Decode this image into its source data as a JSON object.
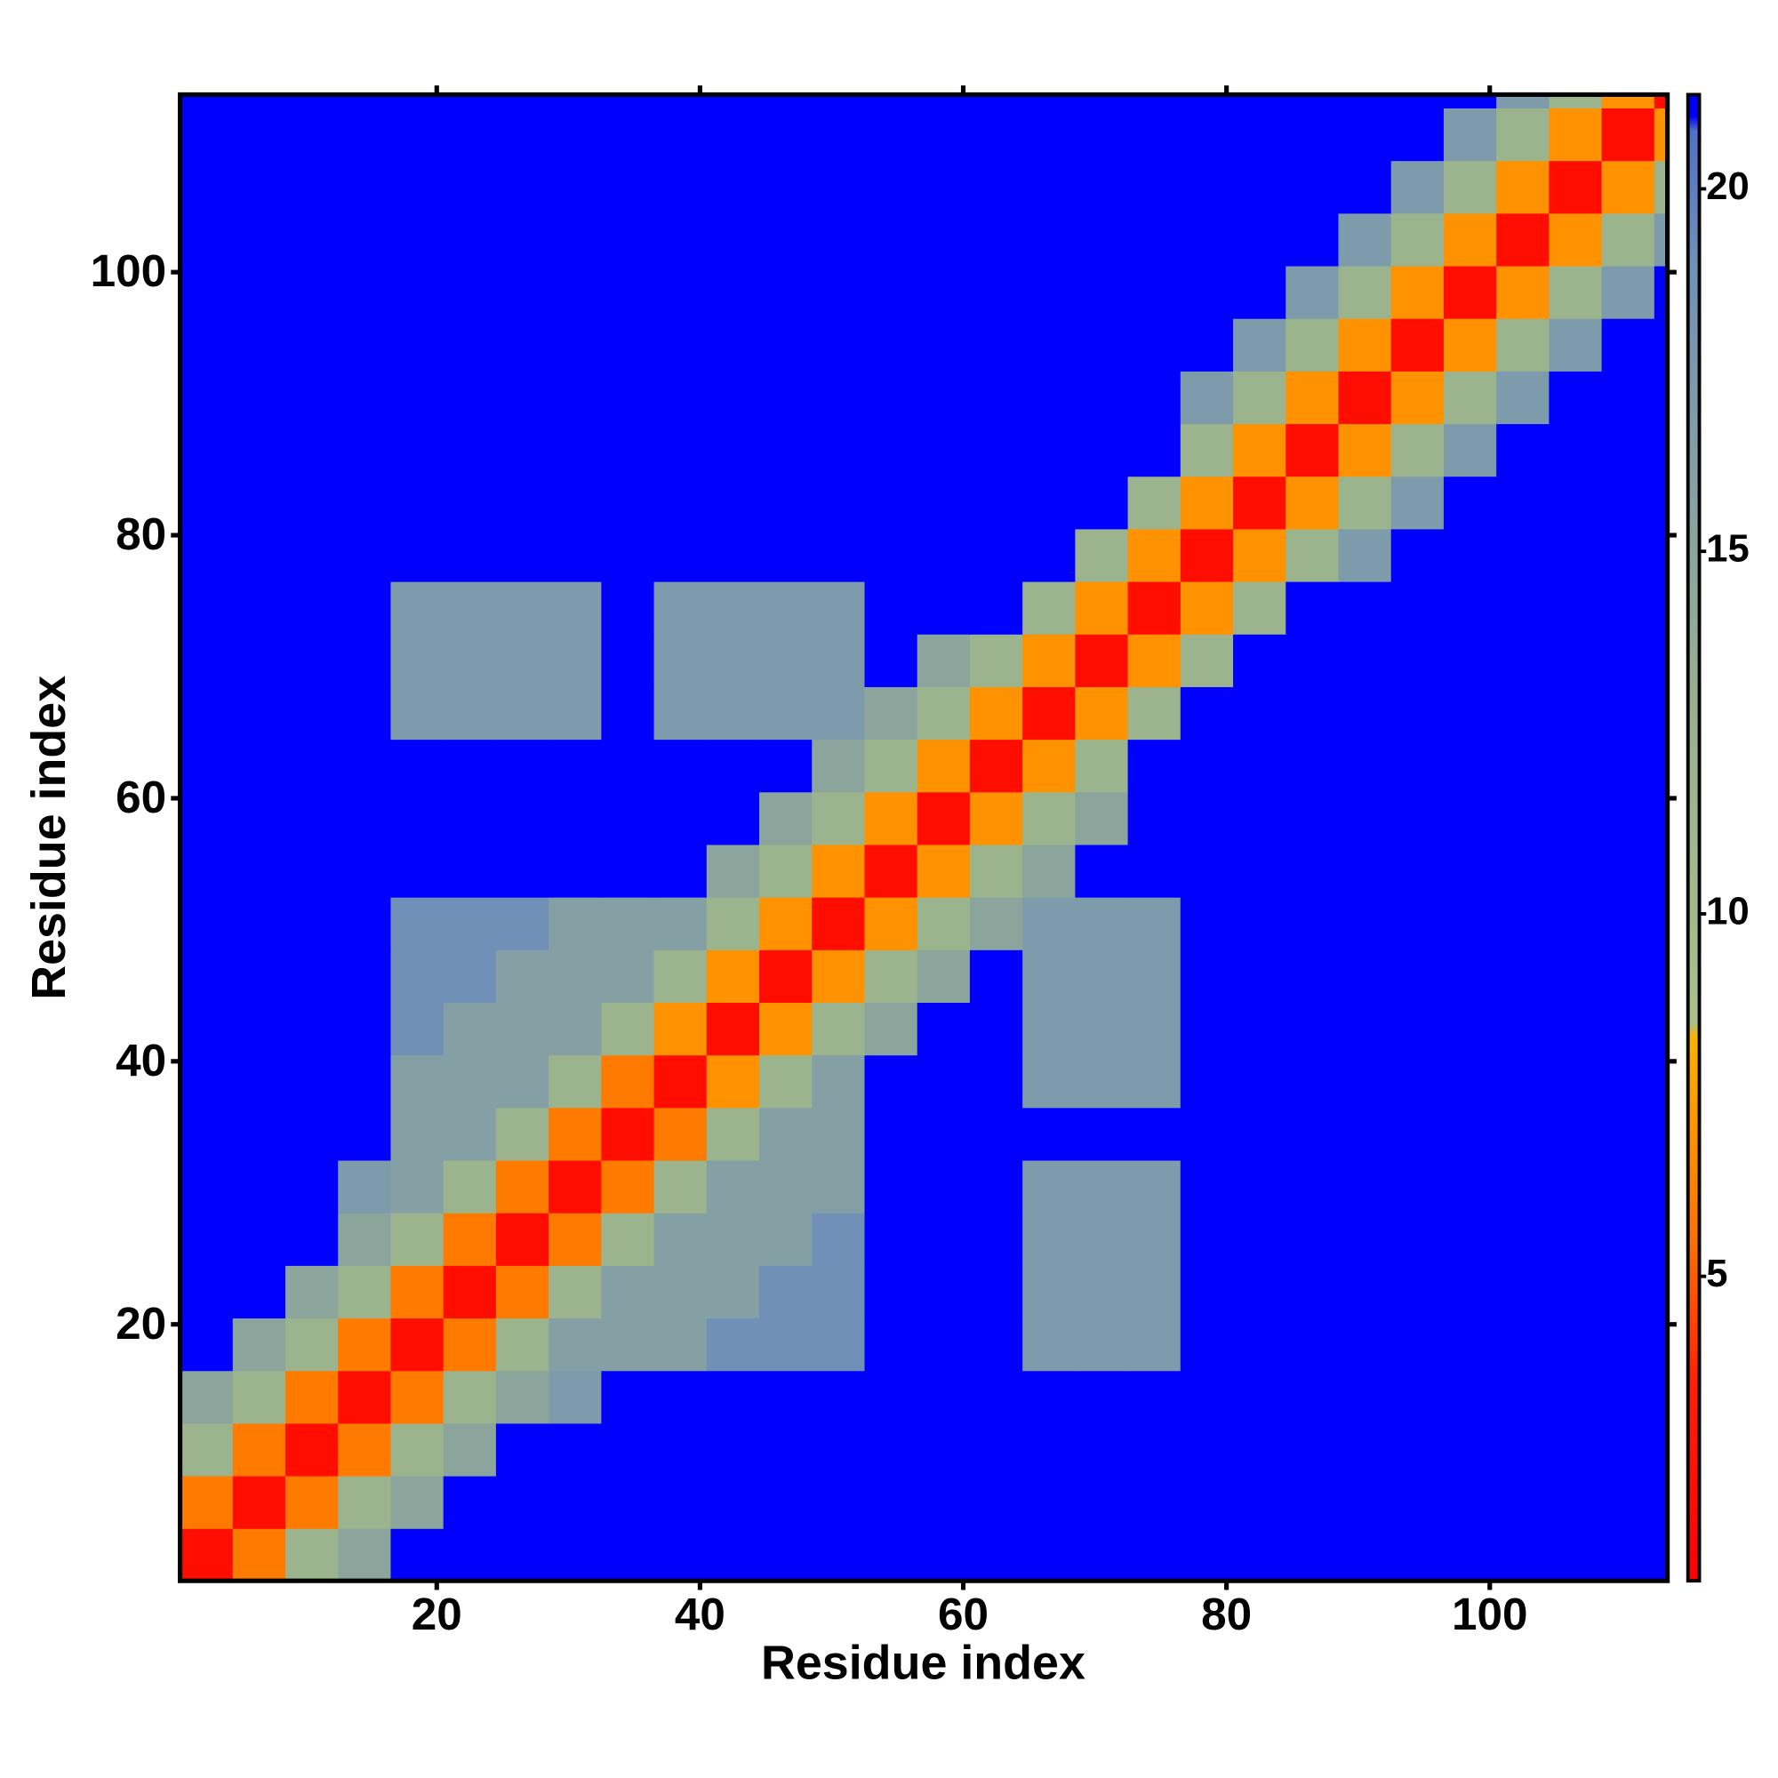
{
  "chart_data": {
    "type": "heatmap",
    "xlabel": "Residue index",
    "ylabel": "Residue index",
    "xlim": [
      0.5,
      113.5
    ],
    "ylim": [
      0.5,
      113.5
    ],
    "xticks": [
      20,
      40,
      60,
      80,
      100
    ],
    "yticks": [
      20,
      40,
      60,
      80,
      100
    ],
    "xbins": [
      0.5,
      4.5,
      8.5,
      12.5,
      16.5,
      20.5,
      24.5,
      28.5,
      32.5,
      36.5,
      40.5,
      44.5,
      48.5,
      52.5,
      56.5,
      60.5,
      64.5,
      68.5,
      72.5,
      76.5,
      80.5,
      84.5,
      88.5,
      92.5,
      96.5,
      100.5,
      104.5,
      108.5,
      112.5,
      113.5
    ],
    "ybins": [
      0.5,
      4.5,
      8.5,
      12.5,
      16.5,
      20.5,
      24.5,
      28.5,
      32.5,
      36.5,
      40.5,
      44.5,
      48.5,
      52.5,
      56.5,
      60.5,
      64.5,
      68.5,
      72.5,
      76.5,
      80.5,
      84.5,
      88.5,
      92.5,
      96.5,
      100.5,
      104.5,
      108.5,
      112.5,
      113.5
    ],
    "colorbar": {
      "lim": [
        0.8,
        21.3
      ],
      "ticks": [
        5,
        10,
        15,
        20
      ]
    },
    "colorscale": [
      [
        0.8,
        "#ff0000"
      ],
      [
        3.5,
        "#ff2000"
      ],
      [
        5.5,
        "#ff7000"
      ],
      [
        8.3,
        "#ffb000"
      ],
      [
        8.5,
        "#a8c088"
      ],
      [
        13,
        "#98b090"
      ],
      [
        19,
        "#7090b8"
      ],
      [
        20.8,
        "#5070c8"
      ],
      [
        21,
        "#0000ff"
      ],
      [
        21.3,
        "#0000ff"
      ]
    ],
    "z": [
      [
        2,
        6,
        12,
        15,
        22,
        22,
        22,
        22,
        22,
        22,
        22,
        22,
        22,
        22,
        22,
        22,
        22,
        22,
        22,
        22,
        22,
        22,
        22,
        22,
        22,
        22,
        22,
        22,
        22
      ],
      [
        6,
        2,
        6,
        12,
        15,
        22,
        22,
        22,
        22,
        22,
        22,
        22,
        22,
        22,
        22,
        22,
        22,
        22,
        22,
        22,
        22,
        22,
        22,
        22,
        22,
        22,
        22,
        22,
        22
      ],
      [
        12,
        6,
        2,
        6,
        12,
        15,
        22,
        22,
        22,
        22,
        22,
        22,
        22,
        22,
        22,
        22,
        22,
        22,
        22,
        22,
        22,
        22,
        22,
        22,
        22,
        22,
        22,
        22,
        22
      ],
      [
        15,
        12,
        6,
        2,
        6,
        12,
        15,
        17,
        22,
        22,
        22,
        22,
        22,
        22,
        22,
        22,
        22,
        22,
        22,
        22,
        22,
        22,
        22,
        22,
        22,
        22,
        22,
        22,
        22
      ],
      [
        22,
        15,
        12,
        6,
        2,
        6,
        12,
        16,
        16,
        16,
        19,
        19,
        19,
        22,
        22,
        22,
        17,
        17,
        17,
        22,
        22,
        22,
        22,
        22,
        22,
        22,
        22,
        22,
        22
      ],
      [
        22,
        22,
        15,
        12,
        6,
        2,
        6,
        12,
        16,
        16,
        16,
        19,
        19,
        22,
        22,
        22,
        17,
        17,
        17,
        22,
        22,
        22,
        22,
        22,
        22,
        22,
        22,
        22,
        22
      ],
      [
        22,
        22,
        22,
        15,
        12,
        6,
        2,
        6,
        12,
        16,
        16,
        16,
        19,
        22,
        22,
        22,
        17,
        17,
        17,
        22,
        22,
        22,
        22,
        22,
        22,
        22,
        22,
        22,
        22
      ],
      [
        22,
        22,
        22,
        17,
        16,
        12,
        6,
        2,
        6,
        12,
        16,
        16,
        16,
        22,
        22,
        22,
        17,
        17,
        17,
        22,
        22,
        22,
        22,
        22,
        22,
        22,
        22,
        22,
        22
      ],
      [
        22,
        22,
        22,
        22,
        16,
        16,
        12,
        6,
        2,
        6,
        12,
        16,
        16,
        22,
        22,
        22,
        22,
        22,
        22,
        22,
        22,
        22,
        22,
        22,
        22,
        22,
        22,
        22,
        22
      ],
      [
        22,
        22,
        22,
        22,
        16,
        16,
        16,
        12,
        6,
        2,
        7,
        12,
        16,
        22,
        22,
        22,
        17,
        17,
        17,
        22,
        22,
        22,
        22,
        22,
        22,
        22,
        22,
        22,
        22
      ],
      [
        22,
        22,
        22,
        22,
        19,
        16,
        16,
        16,
        12,
        7,
        2,
        7,
        12,
        15,
        22,
        22,
        17,
        17,
        17,
        22,
        22,
        22,
        22,
        22,
        22,
        22,
        22,
        22,
        22
      ],
      [
        22,
        22,
        22,
        22,
        19,
        19,
        16,
        16,
        16,
        12,
        7,
        2,
        7,
        12,
        15,
        22,
        17,
        17,
        17,
        22,
        22,
        22,
        22,
        22,
        22,
        22,
        22,
        22,
        22
      ],
      [
        22,
        22,
        22,
        22,
        19,
        19,
        19,
        16,
        16,
        16,
        12,
        7,
        2,
        7,
        12,
        15,
        17,
        17,
        17,
        22,
        22,
        22,
        22,
        22,
        22,
        22,
        22,
        22,
        22
      ],
      [
        22,
        22,
        22,
        22,
        22,
        22,
        22,
        22,
        22,
        22,
        15,
        12,
        7,
        2,
        7,
        12,
        15,
        22,
        22,
        22,
        22,
        22,
        22,
        22,
        22,
        22,
        22,
        22,
        22
      ],
      [
        22,
        22,
        22,
        22,
        22,
        22,
        22,
        22,
        22,
        22,
        22,
        15,
        12,
        7,
        2,
        7,
        12,
        15,
        22,
        22,
        22,
        22,
        22,
        22,
        22,
        22,
        22,
        22,
        22
      ],
      [
        22,
        22,
        22,
        22,
        22,
        22,
        22,
        22,
        22,
        22,
        22,
        22,
        15,
        12,
        7,
        2,
        7,
        12,
        22,
        22,
        22,
        22,
        22,
        22,
        22,
        22,
        22,
        22,
        22
      ],
      [
        22,
        22,
        22,
        22,
        17,
        17,
        17,
        17,
        22,
        17,
        17,
        17,
        17,
        15,
        12,
        7,
        2,
        7,
        12,
        22,
        22,
        22,
        22,
        22,
        22,
        22,
        22,
        22,
        22
      ],
      [
        22,
        22,
        22,
        22,
        17,
        17,
        17,
        17,
        22,
        17,
        17,
        17,
        17,
        22,
        15,
        12,
        7,
        2,
        7,
        12,
        22,
        22,
        22,
        22,
        22,
        22,
        22,
        22,
        22
      ],
      [
        22,
        22,
        22,
        22,
        17,
        17,
        17,
        17,
        22,
        17,
        17,
        17,
        17,
        22,
        22,
        22,
        12,
        7,
        2,
        7,
        12,
        22,
        22,
        22,
        22,
        22,
        22,
        22,
        22
      ],
      [
        22,
        22,
        22,
        22,
        22,
        22,
        22,
        22,
        22,
        22,
        22,
        22,
        22,
        22,
        22,
        22,
        22,
        12,
        7,
        2,
        7,
        12,
        17,
        22,
        22,
        22,
        22,
        22,
        22
      ],
      [
        22,
        22,
        22,
        22,
        22,
        22,
        22,
        22,
        22,
        22,
        22,
        22,
        22,
        22,
        22,
        22,
        22,
        22,
        12,
        7,
        2,
        7,
        12,
        17,
        22,
        22,
        22,
        22,
        22
      ],
      [
        22,
        22,
        22,
        22,
        22,
        22,
        22,
        22,
        22,
        22,
        22,
        22,
        22,
        22,
        22,
        22,
        22,
        22,
        22,
        12,
        7,
        2,
        7,
        12,
        17,
        22,
        22,
        22,
        22
      ],
      [
        22,
        22,
        22,
        22,
        22,
        22,
        22,
        22,
        22,
        22,
        22,
        22,
        22,
        22,
        22,
        22,
        22,
        22,
        22,
        17,
        12,
        7,
        2,
        7,
        12,
        17,
        22,
        22,
        22
      ],
      [
        22,
        22,
        22,
        22,
        22,
        22,
        22,
        22,
        22,
        22,
        22,
        22,
        22,
        22,
        22,
        22,
        22,
        22,
        22,
        22,
        17,
        12,
        7,
        2,
        7,
        12,
        17,
        22,
        22
      ],
      [
        22,
        22,
        22,
        22,
        22,
        22,
        22,
        22,
        22,
        22,
        22,
        22,
        22,
        22,
        22,
        22,
        22,
        22,
        22,
        22,
        22,
        17,
        12,
        7,
        2,
        7,
        12,
        17,
        22
      ],
      [
        22,
        22,
        22,
        22,
        22,
        22,
        22,
        22,
        22,
        22,
        22,
        22,
        22,
        22,
        22,
        22,
        22,
        22,
        22,
        22,
        22,
        22,
        17,
        12,
        7,
        2,
        7,
        12,
        17
      ],
      [
        22,
        22,
        22,
        22,
        22,
        22,
        22,
        22,
        22,
        22,
        22,
        22,
        22,
        22,
        22,
        22,
        22,
        22,
        22,
        22,
        22,
        22,
        22,
        17,
        12,
        7,
        2,
        7,
        12
      ],
      [
        22,
        22,
        22,
        22,
        22,
        22,
        22,
        22,
        22,
        22,
        22,
        22,
        22,
        22,
        22,
        22,
        22,
        22,
        22,
        22,
        22,
        22,
        22,
        22,
        17,
        12,
        7,
        2,
        7
      ],
      [
        22,
        22,
        22,
        22,
        22,
        22,
        22,
        22,
        22,
        22,
        22,
        22,
        22,
        22,
        22,
        22,
        22,
        22,
        22,
        22,
        22,
        22,
        22,
        22,
        22,
        17,
        12,
        7,
        2
      ]
    ]
  }
}
